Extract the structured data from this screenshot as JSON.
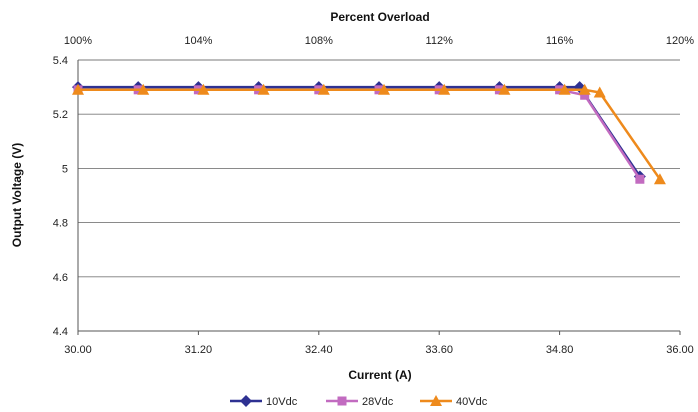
{
  "chart_data": {
    "type": "line",
    "title": "",
    "xlabel": "Current (A)",
    "ylabel": "Output Voltage (V)",
    "top_axis_label": "Percent Overload",
    "xlim": [
      30.0,
      36.0
    ],
    "ylim": [
      4.4,
      5.4
    ],
    "x_ticks": [
      "30.00",
      "31.20",
      "32.40",
      "33.60",
      "34.80",
      "36.00"
    ],
    "y_ticks": [
      "4.4",
      "4.6",
      "4.8",
      "5",
      "5.2",
      "5.4"
    ],
    "top_ticks": [
      "100%",
      "104%",
      "108%",
      "112%",
      "116%",
      "120%"
    ],
    "grid": "horizontal",
    "legend_position": "bottom",
    "colors": {
      "10Vdc": "#2e3192",
      "28Vdc": "#c26bc0",
      "40Vdc": "#ee8a1c"
    },
    "series": [
      {
        "name": "10Vdc",
        "marker": "diamond",
        "x": [
          30.0,
          30.6,
          31.2,
          31.8,
          32.4,
          33.0,
          33.6,
          34.2,
          34.8,
          35.0,
          35.6
        ],
        "y": [
          5.3,
          5.3,
          5.3,
          5.3,
          5.3,
          5.3,
          5.3,
          5.3,
          5.3,
          5.3,
          4.97
        ]
      },
      {
        "name": "28Vdc",
        "marker": "square",
        "x": [
          30.0,
          30.6,
          31.2,
          31.8,
          32.4,
          33.0,
          33.6,
          34.2,
          34.8,
          35.05,
          35.6
        ],
        "y": [
          5.29,
          5.29,
          5.29,
          5.29,
          5.29,
          5.29,
          5.29,
          5.29,
          5.29,
          5.27,
          4.96
        ]
      },
      {
        "name": "40Vdc",
        "marker": "triangle",
        "x": [
          30.0,
          30.65,
          31.25,
          31.85,
          32.45,
          33.05,
          33.65,
          34.25,
          34.85,
          35.05,
          35.2,
          35.8
        ],
        "y": [
          5.29,
          5.29,
          5.29,
          5.29,
          5.29,
          5.29,
          5.29,
          5.29,
          5.29,
          5.29,
          5.28,
          4.96
        ]
      }
    ]
  }
}
